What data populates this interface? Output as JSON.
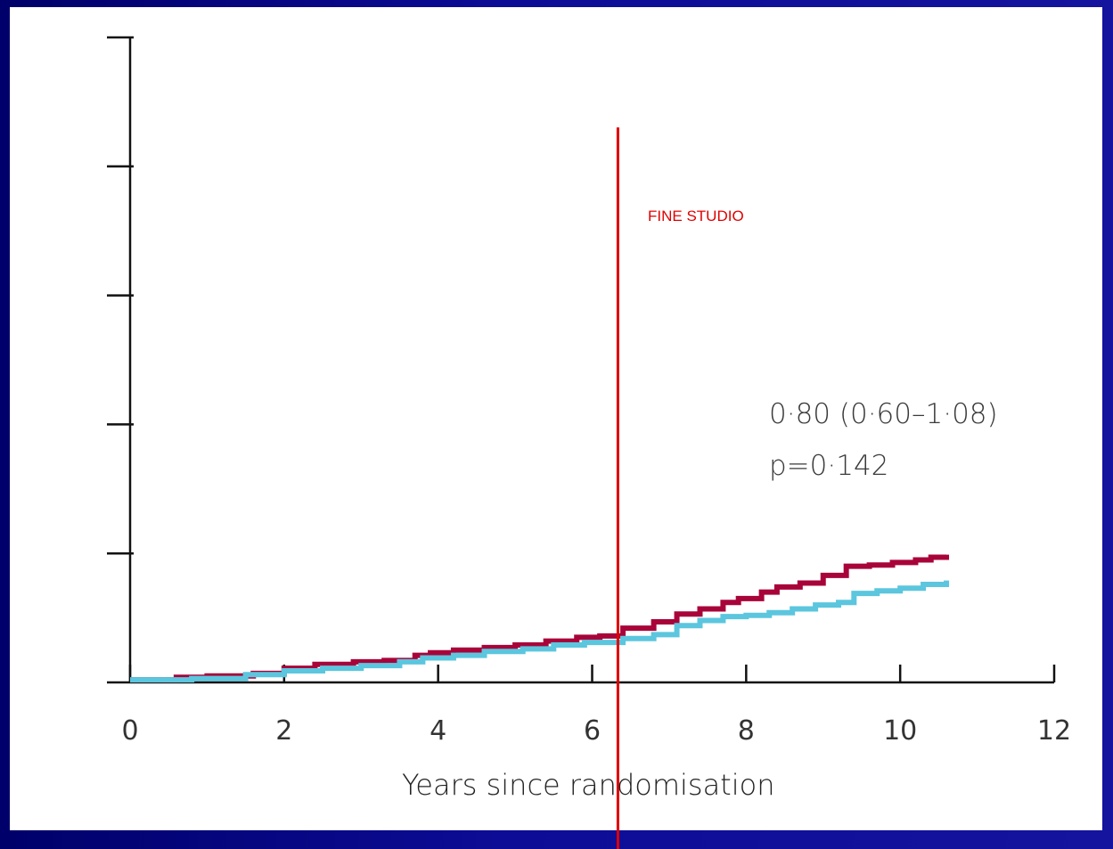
{
  "chart_data": {
    "type": "line",
    "step": true,
    "xlabel": "Years since randomisation",
    "ylabel": "",
    "x_ticks": [
      "0",
      "2",
      "4",
      "6",
      "8",
      "10",
      "12"
    ],
    "xlim": [
      0,
      12
    ],
    "ylim": [
      0,
      5
    ],
    "y_ticks_unlabeled": 5,
    "grid": false,
    "series": [
      {
        "color": "#a8043a",
        "x": [
          0,
          0.6,
          1.0,
          1.6,
          2.0,
          2.4,
          2.9,
          3.3,
          3.7,
          3.9,
          4.2,
          4.6,
          5.0,
          5.4,
          5.8,
          6.1,
          6.4,
          6.8,
          7.1,
          7.4,
          7.7,
          7.9,
          8.2,
          8.4,
          8.7,
          9.0,
          9.3,
          9.6,
          9.9,
          10.2,
          10.4,
          10.6
        ],
        "y": [
          0.02,
          0.04,
          0.05,
          0.07,
          0.11,
          0.14,
          0.16,
          0.17,
          0.21,
          0.23,
          0.25,
          0.27,
          0.29,
          0.32,
          0.35,
          0.36,
          0.42,
          0.47,
          0.53,
          0.57,
          0.62,
          0.65,
          0.7,
          0.74,
          0.77,
          0.83,
          0.9,
          0.91,
          0.93,
          0.95,
          0.97,
          0.99
        ]
      },
      {
        "color": "#5bc6de",
        "x": [
          0,
          0.8,
          1.5,
          2.0,
          2.5,
          3.0,
          3.5,
          3.8,
          4.2,
          4.6,
          5.1,
          5.5,
          5.9,
          6.4,
          6.8,
          7.1,
          7.4,
          7.7,
          8.0,
          8.3,
          8.6,
          8.9,
          9.2,
          9.4,
          9.7,
          10.0,
          10.3,
          10.6
        ],
        "y": [
          0.02,
          0.03,
          0.06,
          0.09,
          0.11,
          0.13,
          0.16,
          0.19,
          0.21,
          0.24,
          0.26,
          0.29,
          0.31,
          0.34,
          0.37,
          0.44,
          0.48,
          0.51,
          0.52,
          0.54,
          0.57,
          0.6,
          0.62,
          0.69,
          0.71,
          0.73,
          0.76,
          0.79
        ]
      }
    ],
    "annotations": [
      "0·80 (0·60–1·08)",
      "p=0·142"
    ],
    "vertical_marker": {
      "x": 6.3,
      "color": "#e00000",
      "label": "FINE STUDIO"
    }
  }
}
